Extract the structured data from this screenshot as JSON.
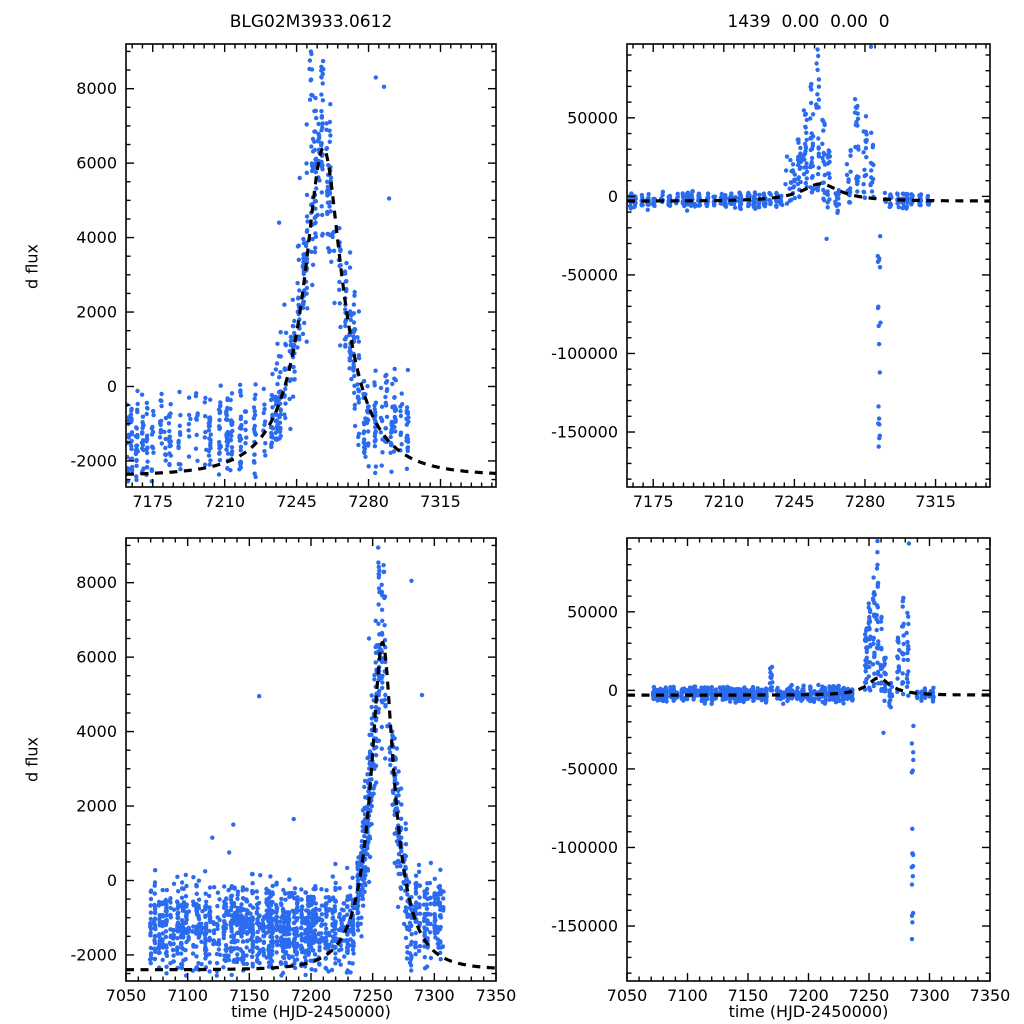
{
  "figure": {
    "background": "#ffffff",
    "point_color": "#2b6bef",
    "model_color": "#000000",
    "grid": false,
    "legend": false
  },
  "chart_data": {
    "type": "scatter",
    "layout": {
      "rows": 2,
      "cols": 2
    },
    "panels": [
      {
        "id": "top-left",
        "title": "BLG02M3933.0612",
        "xlabel": "",
        "ylabel": "d flux",
        "xlim": [
          7162,
          7342
        ],
        "ylim": [
          -2700,
          9200
        ],
        "xticks": [
          7175,
          7210,
          7245,
          7280,
          7315
        ],
        "yticks": [
          -2000,
          0,
          2000,
          4000,
          6000,
          8000
        ],
        "x_minor_step": 5,
        "y_minor_step": 500,
        "model": {
          "type": "paczynski",
          "t0": 7258,
          "tE": 28,
          "u0": 0.32,
          "base": -2400,
          "peak": 6400
        },
        "scatter": {
          "seed": 11,
          "strips": [
            {
              "x0": 7163,
              "x1": 7177,
              "step": 2.4,
              "jitter": 1.0,
              "nmin": 6,
              "nmax": 24,
              "mode": "level",
              "y": -1500,
              "sigma": 620,
              "clip": [
                -2560,
                200
              ]
            },
            {
              "x0": 7179,
              "x1": 7232,
              "step": 3.4,
              "jitter": 1.6,
              "nmin": 4,
              "nmax": 28,
              "mode": "level",
              "y": -1250,
              "sigma": 640,
              "clip": [
                -2520,
                1750
              ]
            },
            {
              "x0": 7233,
              "x1": 7250,
              "step": 2.2,
              "jitter": 0.9,
              "nmin": 8,
              "nmax": 30,
              "mode": "model",
              "sigma": 780,
              "clip": [
                -1700,
                5300
              ]
            },
            {
              "x0": 7250,
              "x1": 7263,
              "step": 1.9,
              "jitter": 0.7,
              "nmin": 10,
              "nmax": 30,
              "mode": "model",
              "sigma": 1150,
              "clip": [
                -400,
                9060
              ]
            },
            {
              "x0": 7263,
              "x1": 7277,
              "step": 2.2,
              "jitter": 0.9,
              "nmin": 8,
              "nmax": 26,
              "mode": "model",
              "sigma": 900,
              "clip": [
                -1700,
                4300
              ]
            },
            {
              "x0": 7278,
              "x1": 7302,
              "step": 3.0,
              "jitter": 1.4,
              "nmin": 5,
              "nmax": 22,
              "mode": "level",
              "y": -1000,
              "sigma": 640,
              "clip": [
                -2350,
                700
              ]
            }
          ],
          "columns": [
            {
              "x": 7252,
              "xs": 0.9,
              "y0": 7700,
              "y1": 9050,
              "n": 10
            },
            {
              "x": 7257.5,
              "xs": 0.5,
              "y0": 8150,
              "y1": 8850,
              "n": 4
            }
          ],
          "points": [
            [
              7283.5,
              8300
            ],
            [
              7287.5,
              8050
            ],
            [
              7290,
              5050
            ],
            [
              7246.5,
              5600
            ],
            [
              7236.5,
              4400
            ]
          ]
        }
      },
      {
        "id": "top-right",
        "title": "1439  0.00  0.00  0",
        "xlabel": "",
        "ylabel": "",
        "xlim": [
          7162,
          7342
        ],
        "ylim": [
          -185000,
          97000
        ],
        "xticks": [
          7175,
          7210,
          7245,
          7280,
          7315
        ],
        "yticks": [
          -150000,
          -100000,
          -50000,
          0,
          50000
        ],
        "x_minor_step": 5,
        "y_minor_step": 10000,
        "model": {
          "type": "paczynski",
          "t0": 7258,
          "tE": 28,
          "u0": 0.32,
          "base": -3000,
          "peak": 8000
        },
        "scatter": {
          "seed": 22,
          "strips": [
            {
              "x0": 7164,
              "x1": 7240,
              "step": 3.0,
              "jitter": 1.4,
              "nmin": 4,
              "nmax": 22,
              "mode": "level",
              "y": -2500,
              "sigma": 2600,
              "clip": [
                -9500,
                3500
              ]
            },
            {
              "x0": 7290,
              "x1": 7312,
              "step": 3.0,
              "jitter": 1.4,
              "nmin": 4,
              "nmax": 16,
              "mode": "level",
              "y": -2600,
              "sigma": 2500,
              "clip": [
                -9000,
                2500
              ]
            },
            {
              "x0": 7241,
              "x1": 7246,
              "step": 1.6,
              "jitter": 0.6,
              "nmin": 6,
              "nmax": 16,
              "mode": "level",
              "y": 8000,
              "sigma": 11000,
              "clip": [
                -5000,
                36000
              ]
            }
          ],
          "columns": [
            {
              "x": 7247.5,
              "xs": 0.8,
              "y0": -2000,
              "y1": 40000,
              "n": 26
            },
            {
              "x": 7250.5,
              "xs": 0.8,
              "y0": 0,
              "y1": 56000,
              "n": 24
            },
            {
              "x": 7253.5,
              "xs": 0.8,
              "y0": 2000,
              "y1": 76000,
              "n": 26
            },
            {
              "x": 7256.5,
              "xs": 0.7,
              "y0": 0,
              "y1": 90000,
              "n": 22
            },
            {
              "x": 7259.5,
              "xs": 0.7,
              "y0": -3000,
              "y1": 52000,
              "n": 18
            },
            {
              "x": 7262,
              "xs": 0.8,
              "y0": -8000,
              "y1": 30000,
              "n": 16
            },
            {
              "x": 7266,
              "xs": 1.2,
              "y0": -12000,
              "y1": 4000,
              "n": 14
            },
            {
              "x": 7272,
              "xs": 1.0,
              "y0": -6000,
              "y1": 30000,
              "n": 16
            },
            {
              "x": 7276,
              "xs": 0.9,
              "y0": -4000,
              "y1": 64000,
              "n": 20
            },
            {
              "x": 7280,
              "xs": 0.9,
              "y0": -6000,
              "y1": 56000,
              "n": 18
            },
            {
              "x": 7283.5,
              "xs": 0.8,
              "y0": -4000,
              "y1": 44000,
              "n": 14
            },
            {
              "x": 7287,
              "xs": 0.7,
              "y0": -162000,
              "y1": -70000,
              "n": 13
            },
            {
              "x": 7287,
              "xs": 0.7,
              "y0": -60000,
              "y1": -15000,
              "n": 6
            }
          ],
          "points": [
            [
              7283,
              95200
            ],
            [
              7256.5,
              93500
            ],
            [
              7261,
              -27000
            ]
          ]
        }
      },
      {
        "id": "bottom-left",
        "title": "",
        "xlabel": "time (HJD-2450000)",
        "ylabel": "d flux",
        "xlim": [
          7050,
          7350
        ],
        "ylim": [
          -2700,
          9200
        ],
        "xticks": [
          7050,
          7100,
          7150,
          7200,
          7250,
          7300,
          7350
        ],
        "yticks": [
          -2000,
          0,
          2000,
          4000,
          6000,
          8000
        ],
        "x_minor_step": 10,
        "y_minor_step": 500,
        "model": {
          "type": "paczynski",
          "t0": 7258,
          "tE": 28,
          "u0": 0.32,
          "base": -2400,
          "peak": 6400
        },
        "scatter": {
          "seed": 33,
          "strips": [
            {
              "x0": 7070,
              "x1": 7236,
              "step": 2.6,
              "jitter": 1.2,
              "nmin": 6,
              "nmax": 32,
              "mode": "level",
              "y": -1300,
              "sigma": 580,
              "clip": [
                -2560,
                900
              ]
            },
            {
              "x0": 7238,
              "x1": 7251,
              "step": 2.0,
              "jitter": 0.8,
              "nmin": 8,
              "nmax": 30,
              "mode": "model",
              "sigma": 720,
              "clip": [
                -1600,
                5200
              ]
            },
            {
              "x0": 7251,
              "x1": 7262,
              "step": 1.8,
              "jitter": 0.7,
              "nmin": 10,
              "nmax": 28,
              "mode": "model",
              "sigma": 1050,
              "clip": [
                -400,
                9060
              ]
            },
            {
              "x0": 7262,
              "x1": 7277,
              "step": 2.2,
              "jitter": 0.9,
              "nmin": 8,
              "nmax": 24,
              "mode": "model",
              "sigma": 880,
              "clip": [
                -1700,
                4200
              ]
            },
            {
              "x0": 7278,
              "x1": 7308,
              "step": 2.8,
              "jitter": 1.3,
              "nmin": 5,
              "nmax": 24,
              "mode": "level",
              "y": -1050,
              "sigma": 620,
              "clip": [
                -2450,
                600
              ]
            }
          ],
          "columns": [
            {
              "x": 7255,
              "xs": 0.8,
              "y0": 7700,
              "y1": 9050,
              "n": 8
            },
            {
              "x": 7259,
              "xs": 0.4,
              "y0": 8100,
              "y1": 8700,
              "n": 3
            }
          ],
          "points": [
            [
              7281.5,
              8050
            ],
            [
              7290,
              4980
            ],
            [
              7158,
              4950
            ],
            [
              7186,
              1650
            ],
            [
              7137,
              1500
            ],
            [
              7120,
              1150
            ],
            [
              7247,
              6500
            ]
          ]
        }
      },
      {
        "id": "bottom-right",
        "title": "",
        "xlabel": "time (HJD-2450000)",
        "ylabel": "",
        "xlim": [
          7050,
          7350
        ],
        "ylim": [
          -185000,
          97000
        ],
        "xticks": [
          7050,
          7100,
          7150,
          7200,
          7250,
          7300,
          7350
        ],
        "yticks": [
          -150000,
          -100000,
          -50000,
          0,
          50000
        ],
        "x_minor_step": 10,
        "y_minor_step": 10000,
        "model": {
          "type": "paczynski",
          "t0": 7258,
          "tE": 28,
          "u0": 0.32,
          "base": -3000,
          "peak": 8000
        },
        "scatter": {
          "seed": 44,
          "strips": [
            {
              "x0": 7072,
              "x1": 7166,
              "step": 2.8,
              "jitter": 1.3,
              "nmin": 5,
              "nmax": 26,
              "mode": "level",
              "y": -2300,
              "sigma": 2300,
              "clip": [
                -8600,
                3000
              ]
            },
            {
              "x0": 7174,
              "x1": 7238,
              "step": 2.8,
              "jitter": 1.3,
              "nmin": 5,
              "nmax": 24,
              "mode": "level",
              "y": -2300,
              "sigma": 2400,
              "clip": [
                -8600,
                3500
              ]
            },
            {
              "x0": 7290,
              "x1": 7306,
              "step": 3.0,
              "jitter": 1.3,
              "nmin": 4,
              "nmax": 16,
              "mode": "level",
              "y": -2600,
              "sigma": 2400,
              "clip": [
                -8600,
                2000
              ]
            }
          ],
          "columns": [
            {
              "x": 7169,
              "xs": 1.1,
              "y0": -1000,
              "y1": 15000,
              "n": 14
            },
            {
              "x": 7247.5,
              "xs": 0.8,
              "y0": -2000,
              "y1": 40000,
              "n": 24
            },
            {
              "x": 7250.5,
              "xs": 0.8,
              "y0": 0,
              "y1": 56000,
              "n": 22
            },
            {
              "x": 7254,
              "xs": 0.8,
              "y0": 2000,
              "y1": 78000,
              "n": 24
            },
            {
              "x": 7257,
              "xs": 0.7,
              "y0": 0,
              "y1": 90000,
              "n": 20
            },
            {
              "x": 7260,
              "xs": 0.7,
              "y0": -4000,
              "y1": 48000,
              "n": 16
            },
            {
              "x": 7263,
              "xs": 0.8,
              "y0": -9000,
              "y1": 26000,
              "n": 14
            },
            {
              "x": 7268,
              "xs": 1.2,
              "y0": -12000,
              "y1": 5000,
              "n": 12
            },
            {
              "x": 7274,
              "xs": 1.0,
              "y0": -5000,
              "y1": 34000,
              "n": 14
            },
            {
              "x": 7278,
              "xs": 0.9,
              "y0": -4000,
              "y1": 62000,
              "n": 18
            },
            {
              "x": 7282,
              "xs": 0.9,
              "y0": -6000,
              "y1": 52000,
              "n": 16
            },
            {
              "x": 7286,
              "xs": 0.7,
              "y0": -160000,
              "y1": -72000,
              "n": 12
            },
            {
              "x": 7286,
              "xs": 0.7,
              "y0": -58000,
              "y1": -16000,
              "n": 6
            }
          ],
          "points": [
            [
              7257,
              95000
            ],
            [
              7283,
              93500
            ],
            [
              7262,
              -27000
            ]
          ]
        }
      }
    ]
  }
}
